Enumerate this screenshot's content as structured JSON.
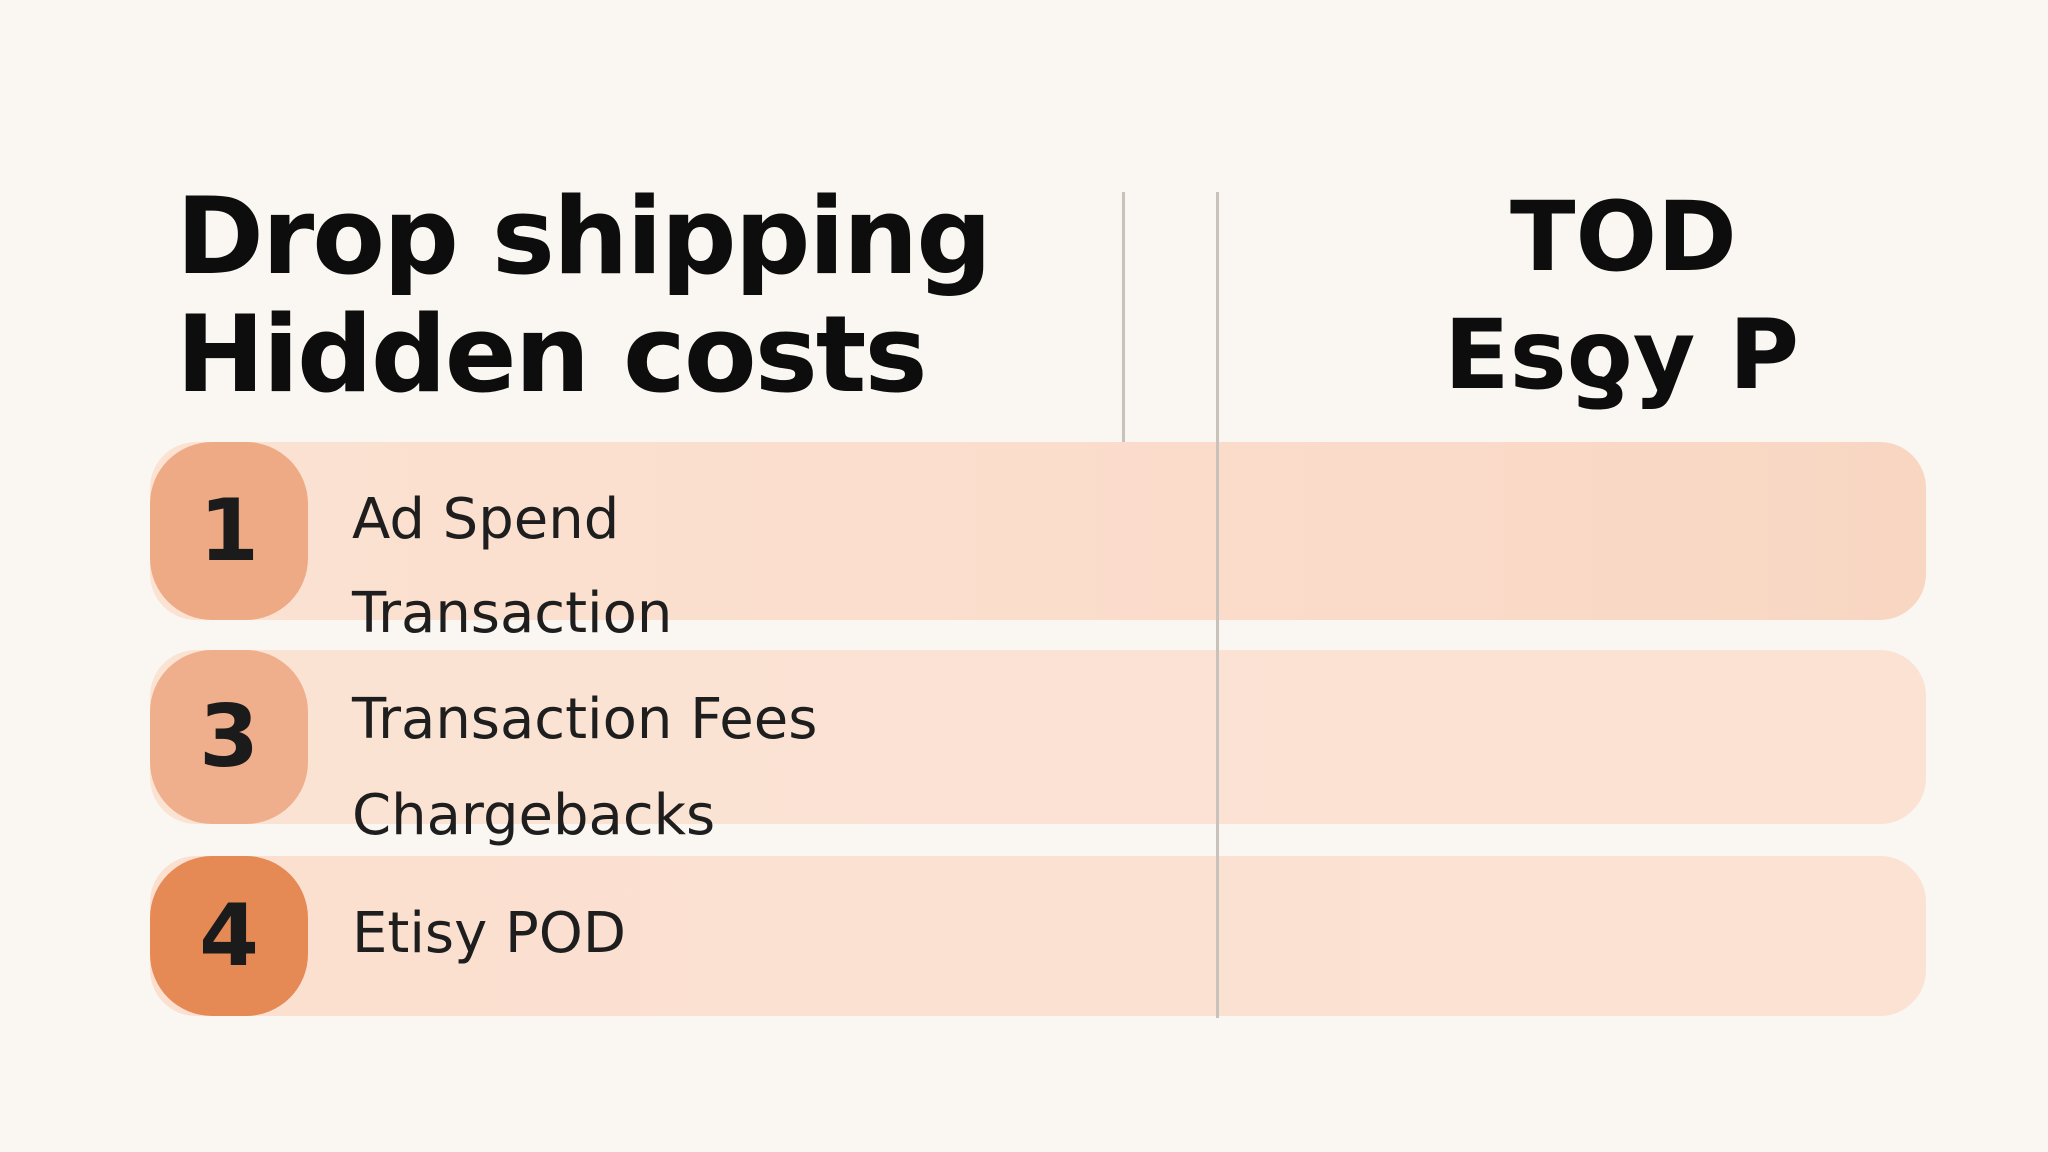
{
  "heading": {
    "left_line1": "Drop shipping",
    "left_line2": "Hidden costs",
    "right_line1": "TOD",
    "right_line2": "Esƍy P"
  },
  "rows": [
    {
      "badge": "1",
      "lines": [
        "Ad Spend",
        "Transaction"
      ]
    },
    {
      "badge": "3",
      "lines": [
        "Transaction Fees",
        "Chargebacks"
      ]
    },
    {
      "badge": "4",
      "lines": [
        "Etisy POD"
      ]
    }
  ],
  "colors": {
    "background": "#faf7f2",
    "row_fill": "#fbe2d3",
    "badge_light": "#eeaa84",
    "badge_dark": "#e68a55",
    "divider": "#c9c2bb"
  }
}
